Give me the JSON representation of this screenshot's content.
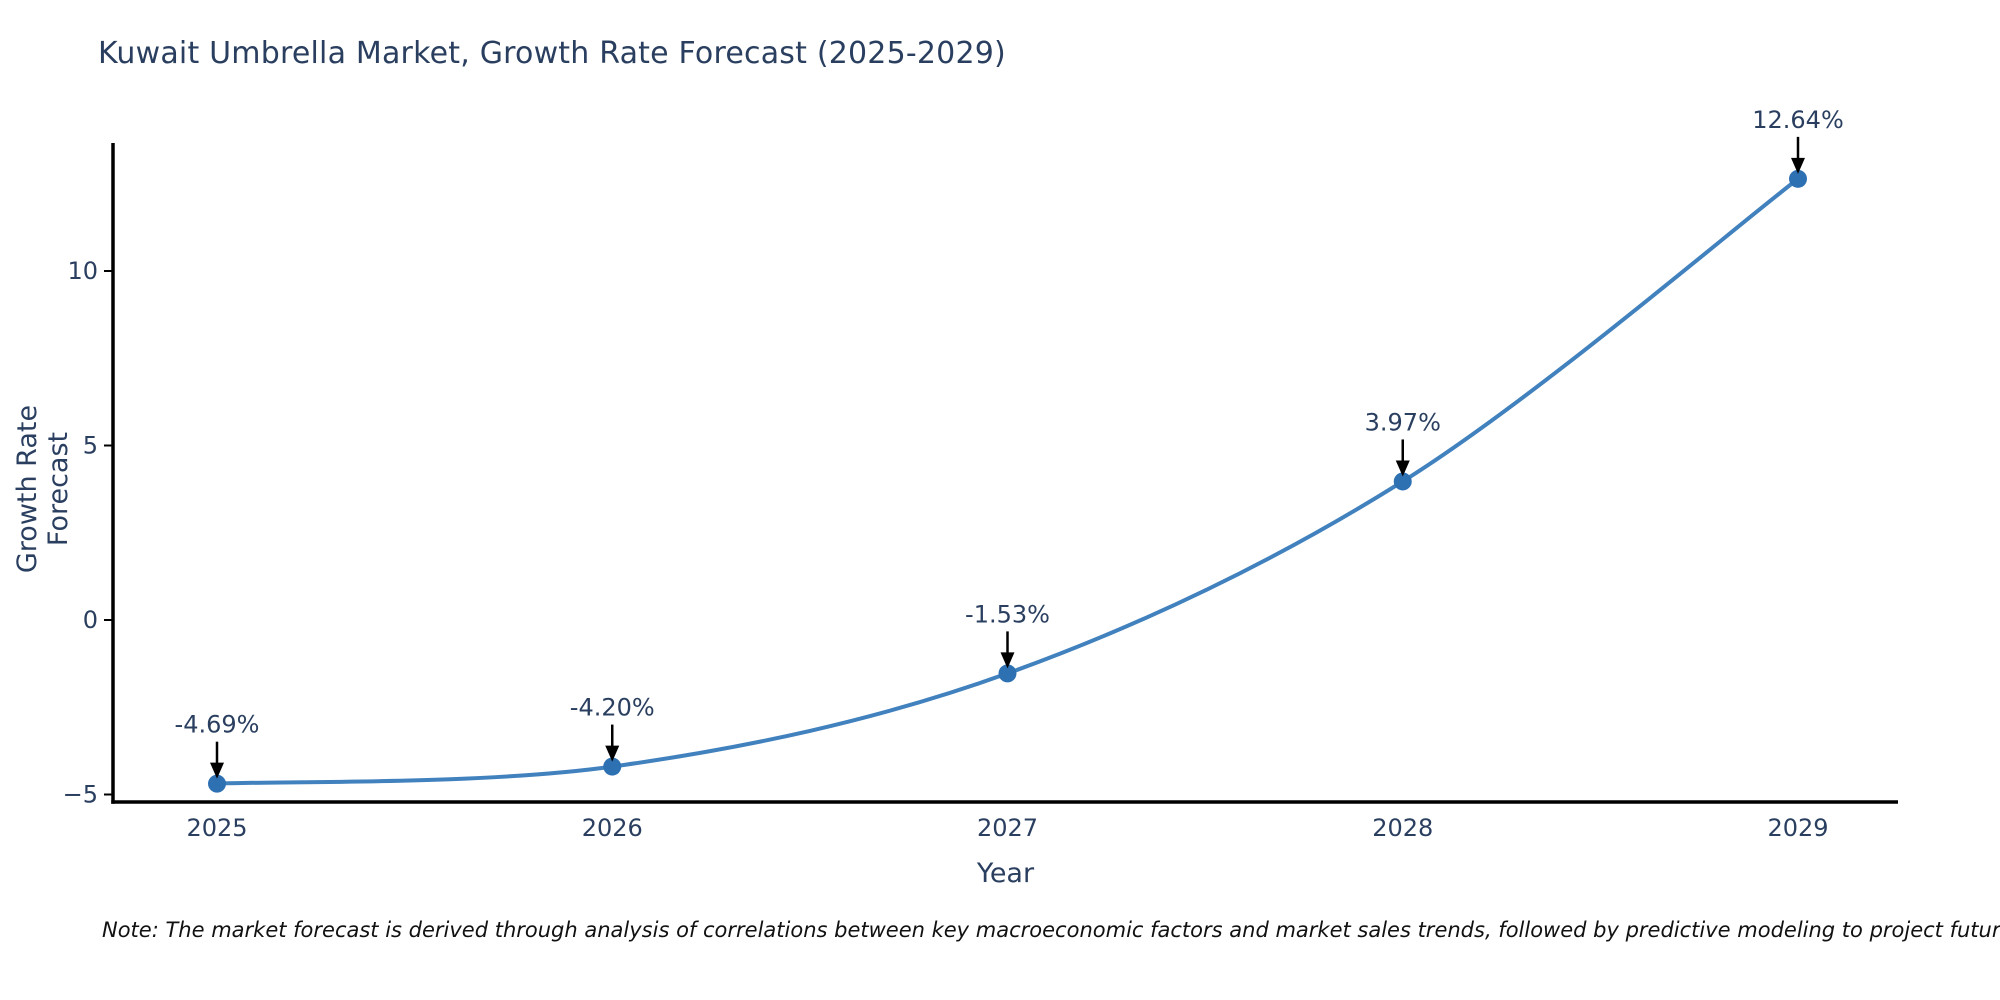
{
  "note": "Note: The market forecast is derived through analysis of correlations between key macroeconomic factors and market sales trends, followed by predictive modeling to project future sales",
  "chart_data": {
    "type": "line",
    "title": "Kuwait Umbrella Market, Growth Rate Forecast (2025-2029)",
    "xlabel": "Year",
    "ylabel": "Growth Rate Forecast",
    "x": [
      2025,
      2026,
      2027,
      2028,
      2029
    ],
    "series": [
      {
        "name": "Growth Rate Forecast",
        "values": [
          -4.69,
          -4.2,
          -1.53,
          3.97,
          12.64
        ]
      }
    ],
    "point_labels": [
      "-4.69%",
      "-4.20%",
      "-1.53%",
      "3.97%",
      "12.64%"
    ],
    "line_shape": "spline",
    "grid": "off",
    "legend": "none",
    "ylim": [
      -5.3,
      13.6
    ],
    "yticks": [
      {
        "value": -5,
        "label": "−5"
      },
      {
        "value": 0,
        "label": "0"
      },
      {
        "value": 5,
        "label": "5"
      },
      {
        "value": 10,
        "label": "10"
      }
    ],
    "colors": {
      "line": "#4181be",
      "marker": "#2e71b3",
      "axis": "#000000",
      "text": "#2a3f5f",
      "annotation_arrow": "#000000",
      "background": "#ffffff"
    }
  }
}
